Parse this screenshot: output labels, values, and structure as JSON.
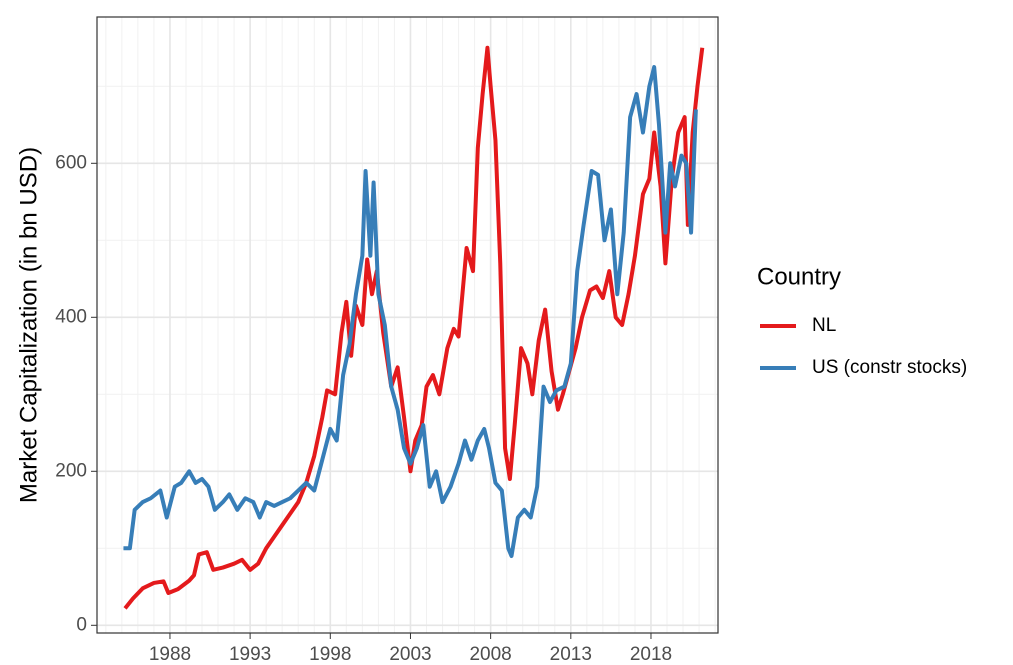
{
  "chart_data": {
    "type": "line",
    "y_label": "Market Capitalization (in bn USD)",
    "legend_title": "Country",
    "legend": "right",
    "grid": true,
    "xlim": [
      1983.45,
      2022.18
    ],
    "ylim": [
      -10,
      790
    ],
    "xticks": [
      1988,
      1993,
      1998,
      2003,
      2008,
      2013,
      2018
    ],
    "yticks": [
      0,
      200,
      400,
      600
    ],
    "series": [
      {
        "name": "NL",
        "color": "#e41a1c",
        "x": [
          1985.2,
          1985.7,
          1986.3,
          1987.0,
          1987.6,
          1987.9,
          1988.5,
          1989.2,
          1989.5,
          1989.8,
          1990.3,
          1990.7,
          1991.3,
          1992.0,
          1992.5,
          1993.0,
          1993.5,
          1994.0,
          1994.5,
          1995.0,
          1995.5,
          1996.0,
          1996.5,
          1997.0,
          1997.5,
          1997.8,
          1998.3,
          1998.7,
          1999.0,
          1999.3,
          1999.6,
          2000.0,
          2000.3,
          2000.6,
          2000.9,
          2001.3,
          2001.8,
          2002.2,
          2002.6,
          2003.0,
          2003.3,
          2003.7,
          2004.0,
          2004.4,
          2004.8,
          2005.3,
          2005.7,
          2006.0,
          2006.5,
          2006.9,
          2007.2,
          2007.5,
          2007.8,
          2008.0,
          2008.3,
          2008.6,
          2008.9,
          2009.2,
          2009.5,
          2009.9,
          2010.3,
          2010.6,
          2011.0,
          2011.4,
          2011.8,
          2012.2,
          2012.5,
          2012.9,
          2013.3,
          2013.7,
          2014.2,
          2014.6,
          2015.0,
          2015.4,
          2015.8,
          2016.2,
          2016.6,
          2017.0,
          2017.5,
          2017.9,
          2018.2,
          2018.6,
          2018.9,
          2019.3,
          2019.7,
          2020.1,
          2020.3,
          2020.6,
          2020.9,
          2021.2
        ],
        "values": [
          22,
          35,
          48,
          55,
          57,
          42,
          47,
          58,
          65,
          92,
          95,
          72,
          75,
          80,
          85,
          72,
          80,
          100,
          115,
          130,
          145,
          160,
          185,
          220,
          270,
          305,
          300,
          380,
          420,
          350,
          415,
          390,
          475,
          430,
          460,
          380,
          310,
          335,
          270,
          200,
          240,
          260,
          310,
          325,
          300,
          360,
          385,
          375,
          490,
          460,
          620,
          690,
          750,
          700,
          630,
          470,
          230,
          190,
          260,
          360,
          340,
          300,
          370,
          410,
          330,
          280,
          300,
          330,
          360,
          400,
          435,
          440,
          425,
          460,
          400,
          390,
          430,
          480,
          560,
          580,
          640,
          570,
          470,
          580,
          640,
          660,
          520,
          640,
          700,
          750
        ]
      },
      {
        "name": "US (constr stocks)",
        "color": "#377eb8",
        "x": [
          1985.1,
          1985.5,
          1985.8,
          1986.3,
          1986.8,
          1987.4,
          1987.8,
          1988.3,
          1988.7,
          1989.2,
          1989.6,
          1990.0,
          1990.4,
          1990.8,
          1991.3,
          1991.7,
          1992.2,
          1992.7,
          1993.2,
          1993.6,
          1994.0,
          1994.5,
          1995.0,
          1995.5,
          1996.0,
          1996.5,
          1997.0,
          1997.5,
          1998.0,
          1998.4,
          1998.8,
          1999.2,
          1999.6,
          2000.0,
          2000.2,
          2000.5,
          2000.7,
          2001.0,
          2001.4,
          2001.8,
          2002.2,
          2002.6,
          2003.0,
          2003.4,
          2003.8,
          2004.2,
          2004.6,
          2005.0,
          2005.5,
          2006.0,
          2006.4,
          2006.8,
          2007.2,
          2007.6,
          2007.9,
          2008.3,
          2008.7,
          2009.1,
          2009.3,
          2009.7,
          2010.1,
          2010.5,
          2010.9,
          2011.3,
          2011.7,
          2012.1,
          2012.6,
          2013.0,
          2013.4,
          2013.8,
          2014.3,
          2014.7,
          2015.1,
          2015.5,
          2015.9,
          2016.3,
          2016.7,
          2017.1,
          2017.5,
          2017.9,
          2018.2,
          2018.5,
          2018.9,
          2019.2,
          2019.5,
          2019.9,
          2020.2,
          2020.5,
          2020.8
        ],
        "values": [
          100,
          100,
          150,
          160,
          165,
          175,
          140,
          180,
          185,
          200,
          185,
          190,
          180,
          150,
          160,
          170,
          150,
          165,
          160,
          140,
          160,
          155,
          160,
          165,
          175,
          185,
          175,
          215,
          255,
          240,
          325,
          365,
          430,
          480,
          590,
          480,
          575,
          430,
          390,
          310,
          280,
          230,
          210,
          230,
          260,
          180,
          200,
          160,
          180,
          210,
          240,
          215,
          240,
          255,
          230,
          185,
          175,
          100,
          90,
          140,
          150,
          140,
          180,
          310,
          290,
          305,
          310,
          340,
          460,
          520,
          590,
          585,
          500,
          540,
          430,
          510,
          660,
          690,
          640,
          700,
          725,
          650,
          510,
          600,
          570,
          610,
          600,
          510,
          670
        ]
      }
    ]
  }
}
